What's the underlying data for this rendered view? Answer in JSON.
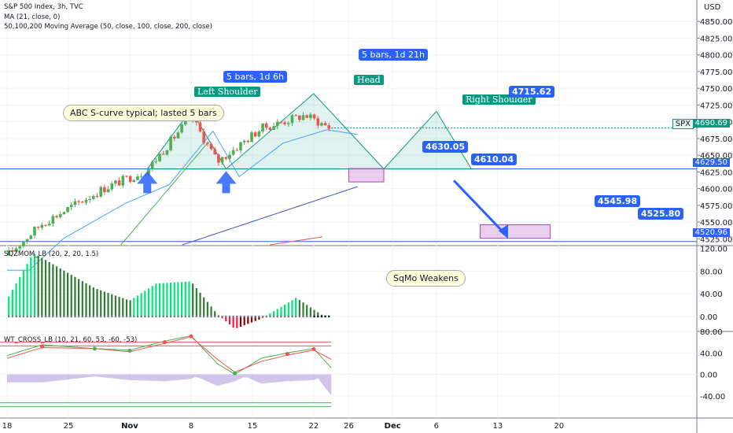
{
  "header": {
    "symbol_line": "S&P 500 Index, 3h, TVC",
    "ma_line": "MA (21, close, 0)",
    "ma3_line": "50,100,200 Moving Average (50, close, 100, close, 200, close)",
    "sqz_line": "SQZMOM_LB (20, 2, 20, 1.5)",
    "wt_line": "WT_CROSS_LB (10, 21, 60, 53, -60, -53)",
    "currency": "USD"
  },
  "annotations": {
    "abc_note": "ABC S-curve typical; lasted 5 bars",
    "sqmo_note": "SqMo Weakens",
    "left_shoulder": "Left Shoulder",
    "head": "Head",
    "right_shoulder": "Right Shoulder",
    "bars_1": "5 bars, 1d 6h",
    "bars_2": "5 bars, 1d 21h"
  },
  "price_tags": {
    "t4715": "4715.62",
    "t4630": "4630.05",
    "t4610": "4610.04",
    "t4545": "4545.98",
    "t4525": "4525.80"
  },
  "right_axis": {
    "spx_label": "SPX",
    "spx_value": "4690.69",
    "level1": "4629.50",
    "level2": "4520.96"
  },
  "colors": {
    "up": "#4caf50",
    "down": "#ef5350",
    "tag_blue": "#2962ff",
    "pattern_teal": "#089981",
    "level_line": "#2962ff"
  },
  "chart_data": [
    {
      "type": "candlestick",
      "title": "S&P 500 Index, 3h, TVC",
      "ylabel": "USD",
      "ylim": [
        4516,
        4882
      ],
      "y_ticks": [
        4850,
        4825,
        4800,
        4775,
        4750,
        4725,
        4700,
        4675,
        4650,
        4625,
        4600,
        4575,
        4550,
        4525
      ],
      "x_tick_labels": [
        "18",
        "25",
        "Nov",
        "8",
        "15",
        "22",
        "26",
        "Dec",
        "6",
        "13",
        "20"
      ],
      "x_tick_days": [
        "2021-10-18",
        "2021-10-25",
        "2021-11-01",
        "2021-11-08",
        "2021-11-15",
        "2021-11-22",
        "2021-11-26",
        "2021-12-01",
        "2021-12-06",
        "2021-12-13",
        "2021-12-20"
      ],
      "last_price": 4690.69,
      "horizontal_levels": [
        4629.5,
        4520.96
      ],
      "segments": [
        {
          "start": "2021-10-18",
          "end": "2021-10-22",
          "open": 4500,
          "close": 4548
        },
        {
          "start": "2021-10-22",
          "end": "2021-10-29",
          "open": 4548,
          "close": 4600
        },
        {
          "start": "2021-10-29",
          "end": "2021-11-03",
          "open": 4600,
          "close": 4628
        },
        {
          "start": "2021-11-03",
          "end": "2021-11-08",
          "open": 4628,
          "close": 4708
        },
        {
          "start": "2021-11-08",
          "end": "2021-11-11",
          "open": 4708,
          "close": 4640
        },
        {
          "start": "2021-11-11",
          "end": "2021-11-16",
          "open": 4640,
          "close": 4690
        },
        {
          "start": "2021-11-16",
          "end": "2021-11-21",
          "open": 4690,
          "close": 4710
        },
        {
          "start": "2021-11-21",
          "end": "2021-11-24",
          "open": 4710,
          "close": 4690
        }
      ],
      "head_shoulders_pattern": {
        "left_shoulder": {
          "date": "2021-11-08",
          "price": 4718
        },
        "head": {
          "date": "2021-11-22",
          "price": 4742
        },
        "right_shoulder": {
          "date": "2021-12-06",
          "price": 4715.62
        },
        "neckline": 4629.5
      },
      "target_zones": [
        {
          "start": "2021-11-26",
          "end": "2021-11-30",
          "low": 4610.04,
          "high": 4630.05
        },
        {
          "start": "2021-12-11",
          "end": "2021-12-19",
          "low": 4525.8,
          "high": 4545.98
        }
      ]
    },
    {
      "type": "bar",
      "title": "SQZMOM_LB (20, 2, 20, 1.5)",
      "ylim": [
        -25,
        125
      ],
      "y_ticks": [
        120,
        80,
        40,
        0
      ],
      "profile": [
        {
          "date": "2021-10-18",
          "value": 30
        },
        {
          "date": "2021-10-21",
          "value": 112
        },
        {
          "date": "2021-10-28",
          "value": 50
        },
        {
          "date": "2021-11-01",
          "value": 28
        },
        {
          "date": "2021-11-04",
          "value": 58
        },
        {
          "date": "2021-11-08",
          "value": 62
        },
        {
          "date": "2021-11-11",
          "value": 4
        },
        {
          "date": "2021-11-13",
          "value": -22
        },
        {
          "date": "2021-11-16",
          "value": -4
        },
        {
          "date": "2021-11-20",
          "value": 33
        },
        {
          "date": "2021-11-23",
          "value": 2
        }
      ]
    },
    {
      "type": "line",
      "title": "WT_CROSS_LB (10, 21, 60, 53, -60, -53)",
      "ylim": [
        -80,
        80
      ],
      "y_ticks": [
        80,
        40,
        0,
        -40
      ],
      "overbought_levels": [
        60,
        53
      ],
      "oversold_levels": [
        -60,
        -53
      ],
      "series": [
        {
          "name": "wt1",
          "points": [
            {
              "date": "2021-10-18",
              "value": 35
            },
            {
              "date": "2021-10-22",
              "value": 55
            },
            {
              "date": "2021-10-28",
              "value": 48
            },
            {
              "date": "2021-11-01",
              "value": 45
            },
            {
              "date": "2021-11-05",
              "value": 62
            },
            {
              "date": "2021-11-08",
              "value": 72
            },
            {
              "date": "2021-11-11",
              "value": 20
            },
            {
              "date": "2021-11-13",
              "value": 0
            },
            {
              "date": "2021-11-16",
              "value": 30
            },
            {
              "date": "2021-11-19",
              "value": 40
            },
            {
              "date": "2021-11-22",
              "value": 48
            },
            {
              "date": "2021-11-24",
              "value": 12
            }
          ]
        },
        {
          "name": "wt2",
          "points": [
            {
              "date": "2021-10-18",
              "value": 30
            },
            {
              "date": "2021-10-22",
              "value": 50
            },
            {
              "date": "2021-10-28",
              "value": 48
            },
            {
              "date": "2021-11-01",
              "value": 42
            },
            {
              "date": "2021-11-05",
              "value": 58
            },
            {
              "date": "2021-11-08",
              "value": 70
            },
            {
              "date": "2021-11-11",
              "value": 28
            },
            {
              "date": "2021-11-13",
              "value": 4
            },
            {
              "date": "2021-11-16",
              "value": 24
            },
            {
              "date": "2021-11-19",
              "value": 36
            },
            {
              "date": "2021-11-22",
              "value": 45
            },
            {
              "date": "2021-11-24",
              "value": 28
            }
          ]
        }
      ]
    }
  ]
}
